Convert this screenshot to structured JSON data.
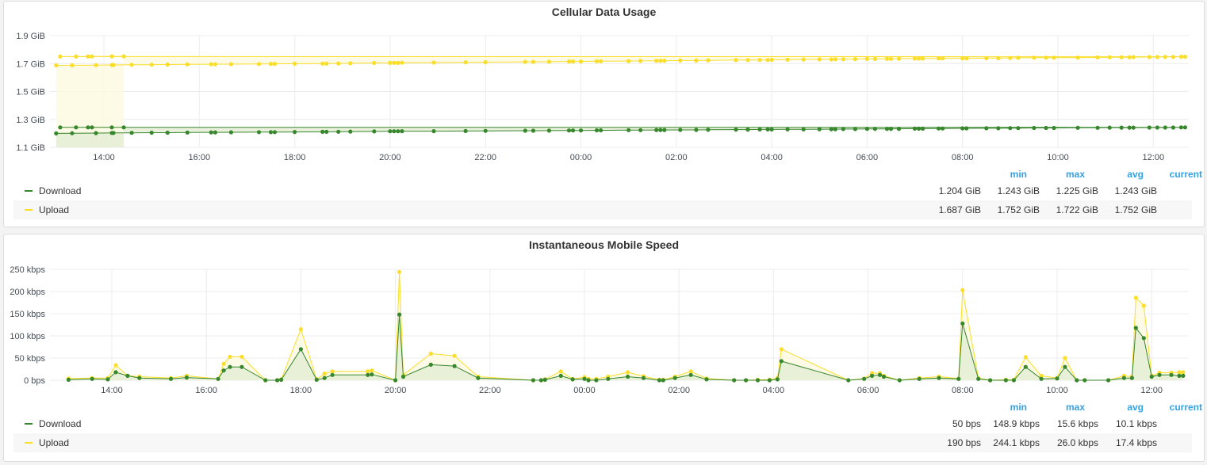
{
  "colors": {
    "download": "#37872d",
    "upload": "#fade2a",
    "download_fill": "#e4edd4",
    "upload_fill": "#fdf9df",
    "grid": "#ececec",
    "axis_text": "#464c54",
    "legend_header": "#33a2e5"
  },
  "legend_headers": [
    "min",
    "max",
    "avg",
    "current"
  ],
  "panels": [
    {
      "title": "Cellular Data Usage",
      "legend": [
        {
          "name": "Download",
          "values": [
            "1.204 GiB",
            "1.243 GiB",
            "1.225 GiB",
            "1.243 GiB"
          ]
        },
        {
          "name": "Upload",
          "values": [
            "1.687 GiB",
            "1.752 GiB",
            "1.722 GiB",
            "1.752 GiB"
          ]
        }
      ]
    },
    {
      "title": "Instantaneous Mobile Speed",
      "legend": [
        {
          "name": "Download",
          "values": [
            "50 bps",
            "148.9 kbps",
            "15.6 kbps",
            "10.1 kbps"
          ]
        },
        {
          "name": "Upload",
          "values": [
            "190 bps",
            "244.1 kbps",
            "26.0 kbps",
            "17.4 kbps"
          ]
        }
      ]
    }
  ],
  "chart_data": [
    {
      "type": "line",
      "title": "Cellular Data Usage",
      "x_ticks": [
        "14:00",
        "16:00",
        "18:00",
        "20:00",
        "22:00",
        "00:00",
        "02:00",
        "04:00",
        "06:00",
        "08:00",
        "10:00",
        "12:00"
      ],
      "y_ticks": [
        "1.1 GiB",
        "1.3 GiB",
        "1.5 GiB",
        "1.7 GiB",
        "1.9 GiB"
      ],
      "ylim": [
        1.1,
        1.9
      ],
      "fill": true,
      "series": [
        {
          "name": "Download",
          "x": [
            "13:00",
            "13:20",
            "13:50",
            "14:10",
            "14:12",
            "14:35",
            "15:00",
            "15:20",
            "15:45",
            "16:15",
            "16:20",
            "16:40",
            "17:15",
            "17:30",
            "17:35",
            "18:00",
            "18:35",
            "18:40",
            "18:55",
            "19:10",
            "19:40",
            "20:00",
            "20:05",
            "20:10",
            "20:15",
            "20:55",
            "21:35",
            "22:00",
            "22:50",
            "23:00",
            "23:20",
            "23:45",
            "23:50",
            "00:00",
            "00:20",
            "00:25",
            "01:00",
            "01:15",
            "01:35",
            "01:40",
            "01:45",
            "02:05",
            "02:25",
            "02:40",
            "03:15",
            "03:30",
            "03:45",
            "03:55",
            "04:00",
            "04:20",
            "04:40",
            "05:00",
            "05:15",
            "05:20",
            "05:30",
            "05:45",
            "06:00",
            "06:10",
            "06:25",
            "06:30",
            "06:40",
            "07:00",
            "07:05",
            "07:10",
            "07:30",
            "07:35",
            "08:00",
            "08:05",
            "08:30",
            "08:45",
            "09:00",
            "09:10",
            "09:30",
            "09:45",
            "09:55",
            "10:25",
            "10:50",
            "11:05",
            "11:20",
            "11:30",
            "11:35",
            "11:55",
            "12:05",
            "12:15",
            "12:25",
            "12:35",
            "12:40",
            "13:05",
            "13:25",
            "13:40",
            "13:45",
            "14:10",
            "14:25"
          ],
          "values": [
            1.2,
            1.201,
            1.202,
            1.203,
            1.203,
            1.204,
            1.205,
            1.205,
            1.206,
            1.207,
            1.207,
            1.208,
            1.209,
            1.209,
            1.209,
            1.21,
            1.211,
            1.211,
            1.212,
            1.213,
            1.214,
            1.215,
            1.215,
            1.215,
            1.216,
            1.216,
            1.217,
            1.218,
            1.219,
            1.219,
            1.22,
            1.221,
            1.221,
            1.221,
            1.222,
            1.222,
            1.223,
            1.223,
            1.224,
            1.224,
            1.224,
            1.225,
            1.225,
            1.226,
            1.227,
            1.227,
            1.228,
            1.228,
            1.228,
            1.229,
            1.229,
            1.23,
            1.23,
            1.23,
            1.231,
            1.231,
            1.232,
            1.232,
            1.232,
            1.233,
            1.233,
            1.234,
            1.234,
            1.234,
            1.235,
            1.235,
            1.236,
            1.236,
            1.237,
            1.237,
            1.238,
            1.238,
            1.239,
            1.239,
            1.239,
            1.24,
            1.24,
            1.241,
            1.241,
            1.241,
            1.241,
            1.242,
            1.242,
            1.242,
            1.242,
            1.243,
            1.243,
            1.243,
            1.243,
            1.243,
            1.243,
            1.243,
            1.243
          ]
        },
        {
          "name": "Upload",
          "x": [
            "13:00",
            "13:20",
            "13:50",
            "14:10",
            "14:12",
            "14:35",
            "15:00",
            "15:20",
            "15:45",
            "16:15",
            "16:20",
            "16:40",
            "17:15",
            "17:30",
            "17:35",
            "18:00",
            "18:35",
            "18:40",
            "18:55",
            "19:10",
            "19:40",
            "20:00",
            "20:05",
            "20:10",
            "20:15",
            "20:55",
            "21:35",
            "22:00",
            "22:50",
            "23:00",
            "23:20",
            "23:45",
            "23:50",
            "00:00",
            "00:20",
            "00:25",
            "01:00",
            "01:15",
            "01:35",
            "01:40",
            "01:45",
            "02:05",
            "02:25",
            "02:40",
            "03:15",
            "03:30",
            "03:45",
            "03:55",
            "04:00",
            "04:20",
            "04:40",
            "05:00",
            "05:15",
            "05:20",
            "05:30",
            "05:45",
            "06:00",
            "06:10",
            "06:25",
            "06:30",
            "06:40",
            "07:00",
            "07:05",
            "07:10",
            "07:30",
            "07:35",
            "08:00",
            "08:05",
            "08:30",
            "08:45",
            "09:00",
            "09:10",
            "09:30",
            "09:45",
            "09:55",
            "10:25",
            "10:50",
            "11:05",
            "11:20",
            "11:30",
            "11:35",
            "11:55",
            "12:05",
            "12:15",
            "12:25",
            "12:35",
            "12:40",
            "13:05",
            "13:25",
            "13:40",
            "13:45",
            "14:10",
            "14:25"
          ],
          "values": [
            1.687,
            1.688,
            1.689,
            1.69,
            1.69,
            1.691,
            1.692,
            1.693,
            1.694,
            1.695,
            1.695,
            1.696,
            1.697,
            1.698,
            1.698,
            1.699,
            1.7,
            1.7,
            1.701,
            1.702,
            1.704,
            1.705,
            1.705,
            1.705,
            1.706,
            1.707,
            1.709,
            1.71,
            1.712,
            1.712,
            1.713,
            1.715,
            1.715,
            1.715,
            1.717,
            1.717,
            1.718,
            1.719,
            1.72,
            1.72,
            1.72,
            1.722,
            1.722,
            1.723,
            1.725,
            1.725,
            1.726,
            1.726,
            1.727,
            1.728,
            1.729,
            1.73,
            1.73,
            1.731,
            1.731,
            1.732,
            1.733,
            1.733,
            1.734,
            1.734,
            1.735,
            1.736,
            1.736,
            1.736,
            1.737,
            1.737,
            1.738,
            1.738,
            1.739,
            1.739,
            1.74,
            1.741,
            1.742,
            1.742,
            1.742,
            1.743,
            1.744,
            1.745,
            1.745,
            1.745,
            1.746,
            1.747,
            1.747,
            1.748,
            1.748,
            1.749,
            1.749,
            1.75,
            1.75,
            1.751,
            1.751,
            1.752,
            1.752
          ]
        }
      ]
    },
    {
      "type": "line",
      "title": "Instantaneous Mobile Speed",
      "x_ticks": [
        "14:00",
        "16:00",
        "18:00",
        "20:00",
        "22:00",
        "00:00",
        "02:00",
        "04:00",
        "06:00",
        "08:00",
        "10:00",
        "12:00"
      ],
      "y_ticks": [
        "0 bps",
        "50 kbps",
        "100 kbps",
        "150 kbps",
        "200 kbps",
        "250 kbps"
      ],
      "ylim": [
        0,
        250
      ],
      "fill": true,
      "series": [
        {
          "name": "Download",
          "x": [
            "13:05",
            "13:35",
            "13:55",
            "14:05",
            "14:20",
            "14:35",
            "15:15",
            "15:35",
            "16:15",
            "16:22",
            "16:30",
            "16:45",
            "17:15",
            "17:30",
            "17:35",
            "18:00",
            "18:20",
            "18:30",
            "18:40",
            "19:25",
            "19:30",
            "20:00",
            "20:05",
            "20:10",
            "20:45",
            "21:15",
            "21:45",
            "22:55",
            "23:05",
            "23:10",
            "23:30",
            "23:45",
            "00:00",
            "00:05",
            "00:15",
            "00:30",
            "00:55",
            "01:15",
            "01:35",
            "01:40",
            "01:55",
            "02:15",
            "02:35",
            "03:10",
            "03:25",
            "03:40",
            "03:55",
            "04:05",
            "04:10",
            "05:35",
            "05:55",
            "06:05",
            "06:15",
            "06:20",
            "06:40",
            "07:05",
            "07:30",
            "07:55",
            "08:00",
            "08:20",
            "08:35",
            "08:55",
            "09:05",
            "09:20",
            "09:40",
            "10:00",
            "10:10",
            "10:25",
            "10:35",
            "11:05",
            "11:25",
            "11:35",
            "11:40",
            "11:50",
            "12:00",
            "12:10",
            "12:25",
            "12:35",
            "12:40"
          ],
          "values": [
            1,
            3,
            2,
            18,
            10,
            5,
            3,
            6,
            3,
            22,
            30,
            30,
            0,
            0,
            1,
            70,
            1,
            5,
            12,
            12,
            13,
            0,
            148,
            8,
            35,
            32,
            5,
            0,
            0,
            1,
            10,
            2,
            3,
            0,
            0,
            3,
            8,
            5,
            0,
            0,
            5,
            12,
            2,
            0,
            0,
            0,
            0,
            2,
            43,
            0,
            3,
            10,
            12,
            8,
            0,
            3,
            5,
            3,
            128,
            3,
            0,
            0,
            0,
            30,
            3,
            4,
            30,
            0,
            0,
            0,
            5,
            5,
            118,
            95,
            8,
            12,
            12,
            10,
            10
          ]
        },
        {
          "name": "Upload",
          "x": [
            "13:05",
            "13:35",
            "13:55",
            "14:05",
            "14:20",
            "14:35",
            "15:15",
            "15:35",
            "16:15",
            "16:22",
            "16:30",
            "16:45",
            "17:15",
            "17:30",
            "17:35",
            "18:00",
            "18:20",
            "18:30",
            "18:40",
            "19:25",
            "19:30",
            "20:00",
            "20:05",
            "20:10",
            "20:45",
            "21:15",
            "21:45",
            "22:55",
            "23:05",
            "23:10",
            "23:30",
            "23:45",
            "00:00",
            "00:05",
            "00:15",
            "00:30",
            "00:55",
            "01:15",
            "01:35",
            "01:40",
            "01:55",
            "02:15",
            "02:35",
            "03:10",
            "03:25",
            "03:40",
            "03:55",
            "04:05",
            "04:10",
            "05:35",
            "05:55",
            "06:05",
            "06:15",
            "06:20",
            "06:40",
            "07:05",
            "07:30",
            "07:55",
            "08:00",
            "08:20",
            "08:35",
            "08:55",
            "09:05",
            "09:20",
            "09:40",
            "10:00",
            "10:10",
            "10:25",
            "10:35",
            "11:05",
            "11:25",
            "11:35",
            "11:40",
            "11:50",
            "12:00",
            "12:10",
            "12:25",
            "12:35",
            "12:40"
          ],
          "values": [
            4,
            5,
            5,
            34,
            10,
            8,
            5,
            10,
            3,
            37,
            53,
            53,
            0,
            0,
            2,
            115,
            2,
            15,
            20,
            20,
            22,
            0,
            244,
            12,
            60,
            55,
            8,
            0,
            0,
            2,
            20,
            3,
            7,
            3,
            3,
            8,
            18,
            9,
            1,
            1,
            8,
            20,
            4,
            0,
            0,
            1,
            1,
            5,
            70,
            0,
            4,
            16,
            16,
            10,
            0,
            5,
            8,
            4,
            203,
            5,
            0,
            1,
            1,
            52,
            10,
            5,
            50,
            0,
            0,
            0,
            10,
            8,
            186,
            168,
            10,
            17,
            17,
            18,
            18
          ]
        }
      ]
    }
  ]
}
